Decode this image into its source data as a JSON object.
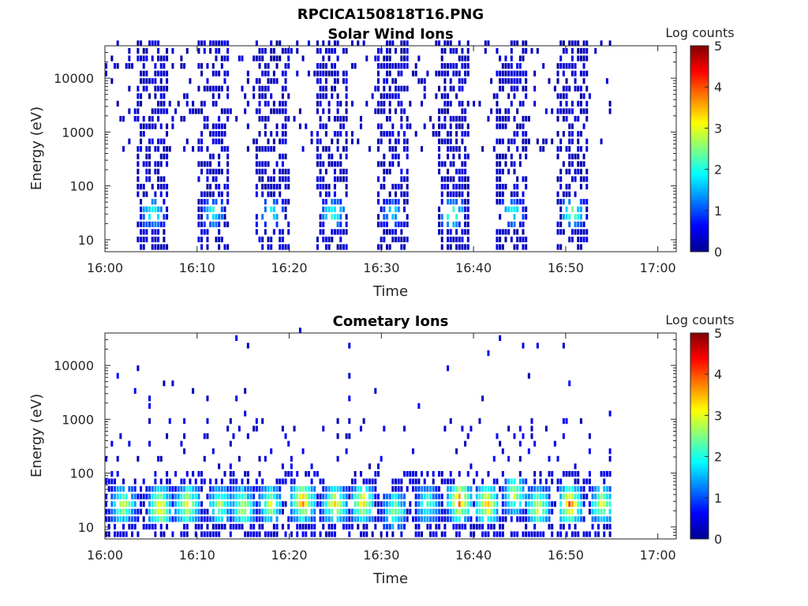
{
  "figure_title": "RPCICA150818T16.PNG",
  "chart_data": [
    {
      "type": "heatmap",
      "title": "Solar Wind Ions",
      "xlabel": "Time",
      "ylabel": "Energy (eV)",
      "x_range": [
        "16:00",
        "17:02"
      ],
      "x_ticks": [
        "16:00",
        "16:10",
        "16:20",
        "16:30",
        "16:40",
        "16:50",
        "17:00"
      ],
      "y_scale": "log",
      "y_range": [
        6,
        40000
      ],
      "y_ticks": [
        "10",
        "100",
        "1000",
        "10000"
      ],
      "colorbar": {
        "label": "Log counts",
        "range": [
          0,
          5
        ],
        "ticks": [
          "0",
          "1",
          "2",
          "3",
          "4",
          "5"
        ],
        "colormap": "jet"
      },
      "data_extent": {
        "time_start": "16:00",
        "time_end": "16:55"
      },
      "bursts": [
        {
          "start": "16:03.5",
          "end": "16:07",
          "peak_energy_eV": 30,
          "peak_log_counts": 2.3
        },
        {
          "start": "16:10",
          "end": "16:13.5",
          "peak_energy_eV": 30,
          "peak_log_counts": 2.0
        },
        {
          "start": "16:16.5",
          "end": "16:20",
          "peak_energy_eV": 30,
          "peak_log_counts": 2.0
        },
        {
          "start": "16:23",
          "end": "16:26.5",
          "peak_energy_eV": 30,
          "peak_log_counts": 2.3
        },
        {
          "start": "16:29.5",
          "end": "16:33",
          "peak_energy_eV": 30,
          "peak_log_counts": 1.8
        },
        {
          "start": "16:36",
          "end": "16:39.5",
          "peak_energy_eV": 30,
          "peak_log_counts": 2.6
        },
        {
          "start": "16:42.5",
          "end": "16:46",
          "peak_energy_eV": 30,
          "peak_log_counts": 2.0
        },
        {
          "start": "16:49",
          "end": "16:52.5",
          "peak_energy_eV": 30,
          "peak_log_counts": 2.6
        }
      ]
    },
    {
      "type": "heatmap",
      "title": "Cometary Ions",
      "xlabel": "Time",
      "ylabel": "Energy (eV)",
      "x_range": [
        "16:00",
        "17:02"
      ],
      "x_ticks": [
        "16:00",
        "16:10",
        "16:20",
        "16:30",
        "16:40",
        "16:50",
        "17:00"
      ],
      "y_scale": "log",
      "y_range": [
        6,
        40000
      ],
      "y_ticks": [
        "10",
        "100",
        "1000",
        "10000"
      ],
      "colorbar": {
        "label": "Log counts",
        "range": [
          0,
          5
        ],
        "ticks": [
          "0",
          "1",
          "2",
          "3",
          "4",
          "5"
        ],
        "colormap": "jet"
      },
      "data_extent": {
        "time_start": "16:00",
        "time_end": "16:55"
      },
      "blobs": [
        {
          "time": "16:02",
          "peak_energy_eV": 25,
          "peak_log_counts": 2.8
        },
        {
          "time": "16:06",
          "peak_energy_eV": 22,
          "peak_log_counts": 3.5
        },
        {
          "time": "16:09",
          "peak_energy_eV": 25,
          "peak_log_counts": 3.3
        },
        {
          "time": "16:12.5",
          "peak_energy_eV": 25,
          "peak_log_counts": 2.6
        },
        {
          "time": "16:15",
          "peak_energy_eV": 22,
          "peak_log_counts": 3.0
        },
        {
          "time": "16:18",
          "peak_energy_eV": 25,
          "peak_log_counts": 2.8
        },
        {
          "time": "16:21.5",
          "peak_energy_eV": 30,
          "peak_log_counts": 3.8
        },
        {
          "time": "16:25",
          "peak_energy_eV": 25,
          "peak_log_counts": 3.3
        },
        {
          "time": "16:28",
          "peak_energy_eV": 28,
          "peak_log_counts": 3.4
        },
        {
          "time": "16:31.5",
          "peak_energy_eV": 20,
          "peak_log_counts": 2.5
        },
        {
          "time": "16:35",
          "peak_energy_eV": 25,
          "peak_log_counts": 2.2
        },
        {
          "time": "16:38.5",
          "peak_energy_eV": 30,
          "peak_log_counts": 4.0
        },
        {
          "time": "16:41.5",
          "peak_energy_eV": 25,
          "peak_log_counts": 3.6
        },
        {
          "time": "16:44.5",
          "peak_energy_eV": 40,
          "peak_log_counts": 2.8
        },
        {
          "time": "16:47",
          "peak_energy_eV": 22,
          "peak_log_counts": 3.0
        },
        {
          "time": "16:50.5",
          "peak_energy_eV": 25,
          "peak_log_counts": 3.8
        },
        {
          "time": "16:54",
          "peak_energy_eV": 25,
          "peak_log_counts": 3.0
        }
      ]
    }
  ]
}
